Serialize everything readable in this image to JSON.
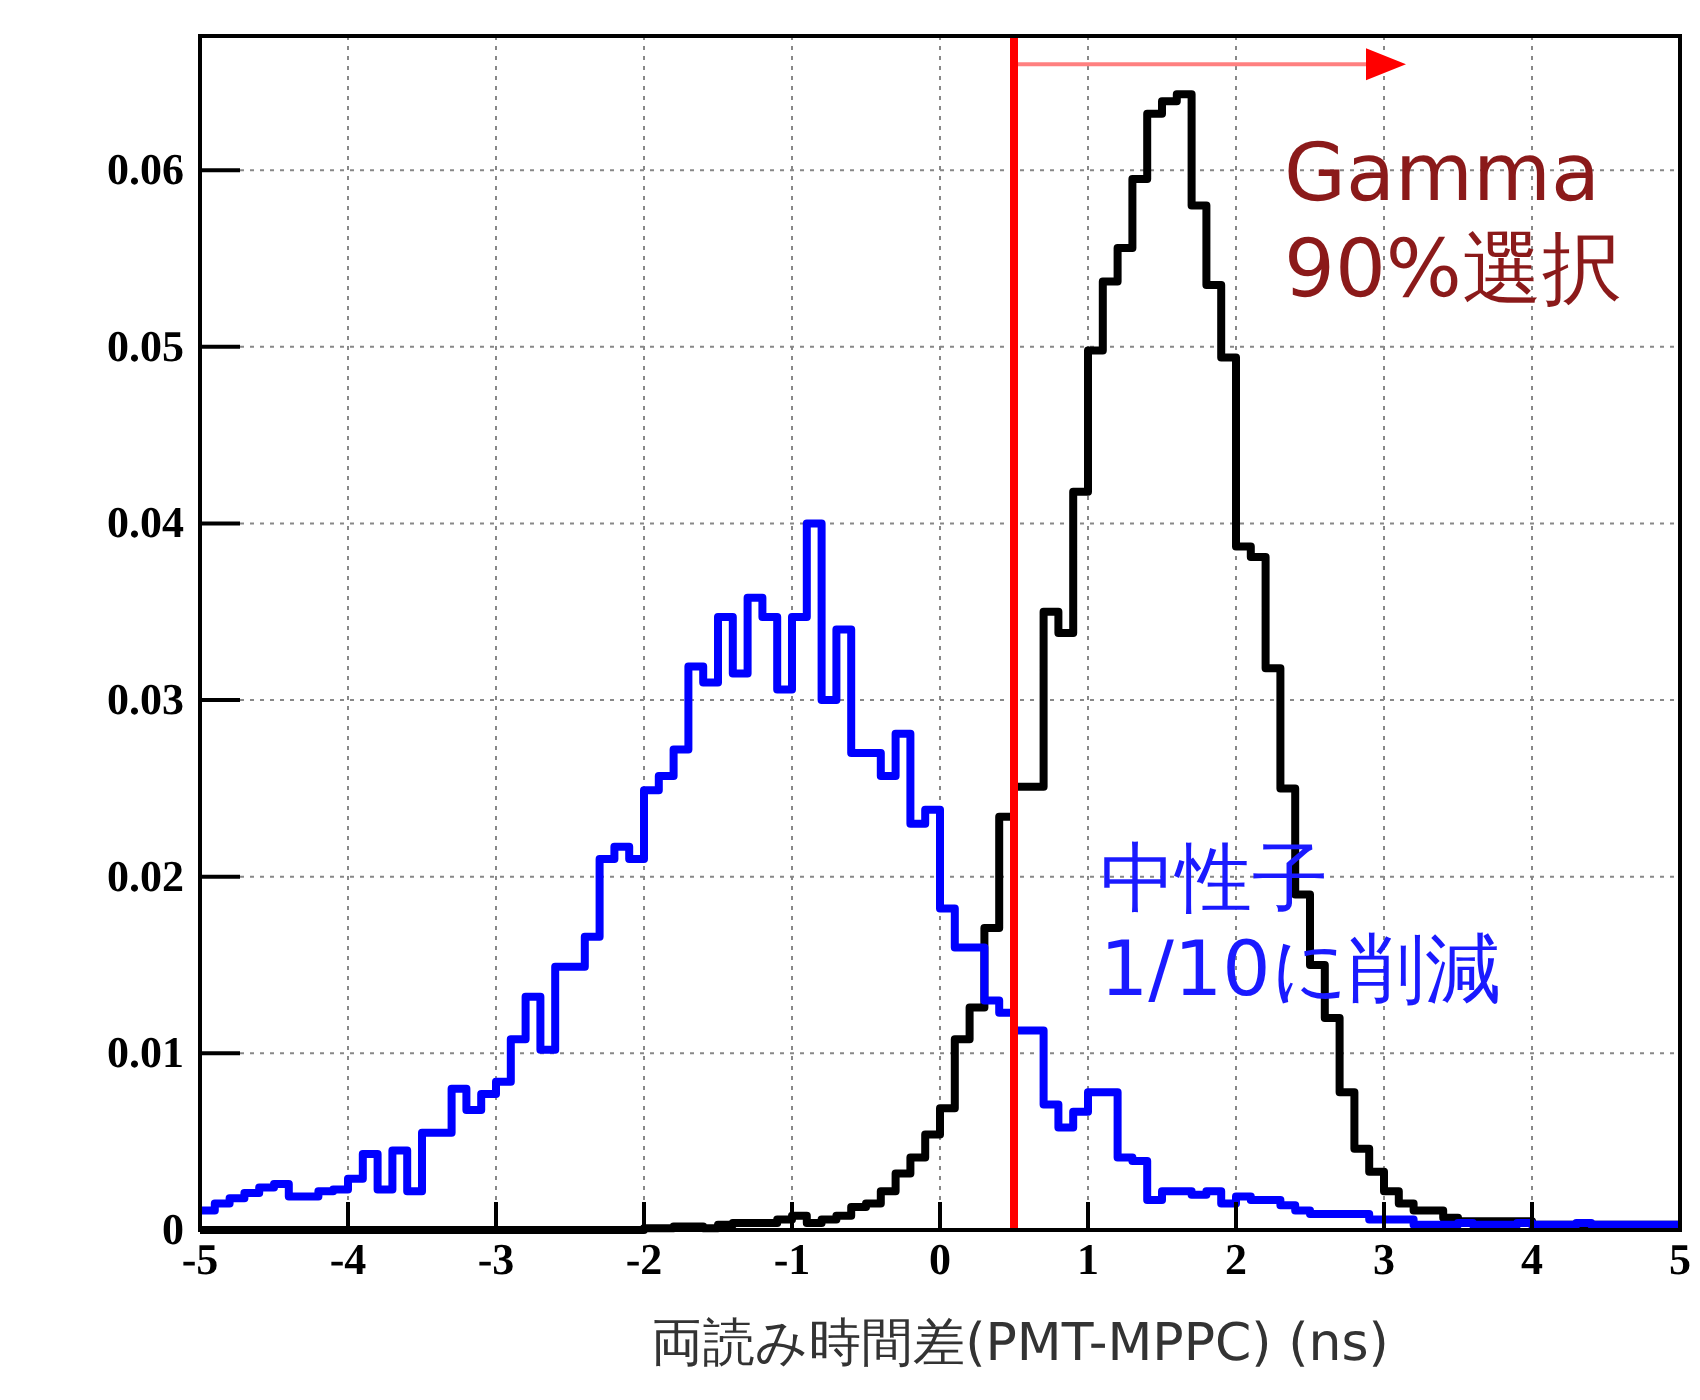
{
  "chart_data": {
    "type": "histogram",
    "xlabel": "両読み時間差(PMT-MPPC) (ns)",
    "bins": [
      -5,
      -4.9,
      -4.8,
      -4.7,
      -4.6,
      -4.5,
      -4.4,
      -4.3,
      -4.2,
      -4.1,
      -4,
      -3.9,
      -3.8,
      -3.7,
      -3.6,
      -3.5,
      -3.4,
      -3.3,
      -3.2,
      -3.1,
      -3,
      -2.9,
      -2.8,
      -2.7,
      -2.6,
      -2.5,
      -2.4,
      -2.3,
      -2.2,
      -2.1,
      -2,
      -1.9,
      -1.8,
      -1.7,
      -1.6,
      -1.5,
      -1.4,
      -1.3,
      -1.2,
      -1.1,
      -1,
      -0.9,
      -0.8,
      -0.7,
      -0.6,
      -0.5,
      -0.4,
      -0.3,
      -0.2,
      -0.1,
      0,
      0.1,
      0.2,
      0.3,
      0.4,
      0.5,
      0.6,
      0.7,
      0.8,
      0.9,
      1,
      1.1,
      1.2,
      1.3,
      1.4,
      1.5,
      1.6,
      1.7,
      1.8,
      1.9,
      2,
      2.1,
      2.2,
      2.3,
      2.4,
      2.5,
      2.6,
      2.7,
      2.8,
      2.9,
      3,
      3.1,
      3.2,
      3.3,
      3.4,
      3.5,
      3.6,
      3.7,
      3.8,
      3.9,
      4,
      4.1,
      4.2,
      4.3,
      4.4,
      4.5,
      4.6,
      4.7,
      4.8,
      4.9,
      5
    ],
    "series": [
      {
        "color": "#000000",
        "values": [
          0,
          0,
          0,
          0,
          0,
          0,
          0,
          0,
          0,
          0,
          0,
          0,
          0,
          0,
          0,
          0,
          0,
          0,
          0,
          0,
          0,
          0,
          0,
          0,
          0,
          0,
          0,
          0,
          0,
          0,
          0.0001,
          0.0001,
          0.0002,
          0.0002,
          0.0001,
          0.0003,
          0.0004,
          0.0004,
          0.0004,
          0.0006,
          0.0008,
          0.0004,
          0.0006,
          0.0008,
          0.0013,
          0.0015,
          0.0022,
          0.0032,
          0.0041,
          0.0054,
          0.0069,
          0.0108,
          0.0126,
          0.0171,
          0.0234,
          0.0251,
          0.0251,
          0.035,
          0.0338,
          0.0418,
          0.0498,
          0.0537,
          0.0556,
          0.0595,
          0.0632,
          0.0639,
          0.0643,
          0.058,
          0.0535,
          0.0494,
          0.0387,
          0.0381,
          0.0318,
          0.025,
          0.019,
          0.015,
          0.012,
          0.0078,
          0.0046,
          0.0033,
          0.0022,
          0.0015,
          0.0011,
          0.0011,
          0.0007,
          0.0005,
          0.0005,
          0.0005,
          0.0005,
          0.0005,
          0.0003,
          0.0003,
          0.0003,
          0.0003,
          0.0003,
          0.0003,
          0.0003,
          0.0003,
          0.0003,
          0.0003
        ]
      },
      {
        "color": "#0000ff",
        "values": [
          0.0011,
          0.0015,
          0.0018,
          0.0021,
          0.0024,
          0.0026,
          0.0019,
          0.0019,
          0.0022,
          0.0023,
          0.0029,
          0.0043,
          0.0023,
          0.0045,
          0.0022,
          0.0055,
          0.0055,
          0.008,
          0.0068,
          0.0077,
          0.0084,
          0.0108,
          0.0132,
          0.0102,
          0.0149,
          0.0149,
          0.0166,
          0.021,
          0.0217,
          0.021,
          0.0249,
          0.0257,
          0.0272,
          0.0319,
          0.031,
          0.0347,
          0.0315,
          0.0358,
          0.0347,
          0.0306,
          0.0347,
          0.04,
          0.03,
          0.034,
          0.027,
          0.027,
          0.0257,
          0.0281,
          0.023,
          0.0238,
          0.0182,
          0.016,
          0.016,
          0.013,
          0.0123,
          0.0113,
          0.0113,
          0.0071,
          0.0058,
          0.0067,
          0.0078,
          0.0078,
          0.0041,
          0.0039,
          0.0017,
          0.0022,
          0.0022,
          0.002,
          0.0022,
          0.0015,
          0.0019,
          0.0017,
          0.0017,
          0.0014,
          0.0011,
          0.0009,
          0.0009,
          0.0009,
          0.0009,
          0.0006,
          0.0006,
          0.0006,
          0.0003,
          0.0003,
          0.0003,
          0.0004,
          0.0003,
          0.0003,
          0.0003,
          0.0004,
          0.0003,
          0.0003,
          0.0003,
          0.0004,
          0.0003,
          0.0003,
          0.0003,
          0.0003,
          0.0003,
          0.0003
        ]
      }
    ],
    "xlim": [
      -5,
      5
    ],
    "xticks": [
      -5,
      -4,
      -3,
      -2,
      -1,
      0,
      1,
      2,
      3,
      4,
      5
    ],
    "ylim": [
      0,
      0.0676
    ],
    "yticks": [
      0,
      0.01,
      0.02,
      0.03,
      0.04,
      0.05,
      0.06
    ],
    "grid": true,
    "ref_lines": [
      {
        "axis": "x",
        "value": 0.5,
        "color": "#ff0000"
      }
    ],
    "annotations": [
      {
        "text": "Gamma\n90%選択",
        "x": 0.5,
        "y": 0.066
      },
      "中性子\n1/10に削減"
    ]
  }
}
